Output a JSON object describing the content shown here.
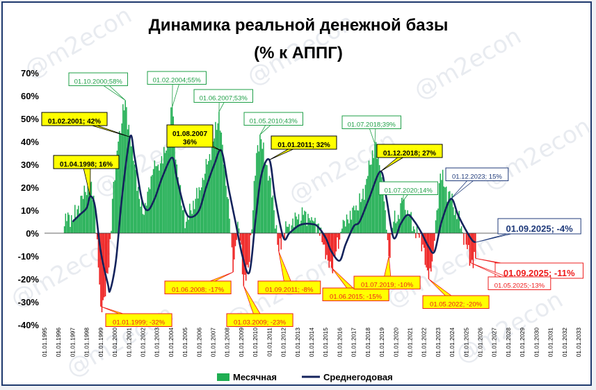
{
  "title_line1": "Динамика реальной денежной базы",
  "title_line2": "(% к АППГ)",
  "watermark": "@m2econ",
  "colors": {
    "positive": "#1fae52",
    "negative": "#ee1c1c",
    "line": "#14235c",
    "frame": "#1f3a6e",
    "callout_yellow": "#ffff00",
    "green_label": "#1e9f46",
    "blue_label": "#1f3a7a"
  },
  "chart_data": {
    "type": "bar",
    "ylim": [
      -40,
      70
    ],
    "y_ticks": [
      "70%",
      "60%",
      "50%",
      "40%",
      "30%",
      "20%",
      "10%",
      "0%",
      "-10%",
      "-20%",
      "-30%",
      "-40%"
    ],
    "y_tick_values": [
      70,
      60,
      50,
      40,
      30,
      20,
      10,
      0,
      -10,
      -20,
      -30,
      -40
    ],
    "x_ticks": [
      "01.01.1995",
      "01.01.1996",
      "01.01.1997",
      "01.01.1998",
      "01.01.1999",
      "01.01.2000",
      "01.01.2001",
      "01.01.2002",
      "01.01.2003",
      "01.01.2004",
      "01.01.2005",
      "01.01.2006",
      "01.01.2007",
      "01.01.2008",
      "01.01.2009",
      "01.01.2010",
      "01.01.2011",
      "01.01.2012",
      "01.01.2013",
      "01.01.2014",
      "01.01.2015",
      "01.01.2016",
      "01.01.2017",
      "01.01.2018",
      "01.01.2019",
      "01.01.2020",
      "01.01.2021",
      "01.01.2022",
      "01.01.2023",
      "01.01.2024",
      "01.01.2025",
      "01.01.2026",
      "01.01.2027",
      "01.01.2028",
      "01.01.2029",
      "01.01.2030",
      "01.01.2031",
      "01.01.2032",
      "01.01.2033"
    ],
    "series": [
      {
        "name": "Месячная",
        "kind": "bar",
        "anchors": [
          [
            "1996-06-01",
            3
          ],
          [
            "1996-09-01",
            9
          ],
          [
            "1997-01-01",
            5
          ],
          [
            "1997-06-01",
            12
          ],
          [
            "1997-12-01",
            18
          ],
          [
            "1998-04-01",
            22
          ],
          [
            "1998-08-01",
            12
          ],
          [
            "1998-11-01",
            -15
          ],
          [
            "1999-01-01",
            -32
          ],
          [
            "1999-04-01",
            -28
          ],
          [
            "1999-08-01",
            -15
          ],
          [
            "1999-11-01",
            15
          ],
          [
            "2000-04-01",
            40
          ],
          [
            "2000-10-01",
            58
          ],
          [
            "2001-02-01",
            42
          ],
          [
            "2001-06-01",
            30
          ],
          [
            "2001-10-01",
            15
          ],
          [
            "2002-02-01",
            8
          ],
          [
            "2002-06-01",
            20
          ],
          [
            "2002-10-01",
            28
          ],
          [
            "2003-02-01",
            30
          ],
          [
            "2003-08-01",
            35
          ],
          [
            "2004-02-01",
            55
          ],
          [
            "2004-06-01",
            30
          ],
          [
            "2004-10-01",
            12
          ],
          [
            "2005-02-01",
            5
          ],
          [
            "2005-06-01",
            10
          ],
          [
            "2005-10-01",
            15
          ],
          [
            "2006-03-01",
            20
          ],
          [
            "2006-08-01",
            30
          ],
          [
            "2007-01-01",
            40
          ],
          [
            "2007-06-01",
            53
          ],
          [
            "2007-10-01",
            30
          ],
          [
            "2008-02-01",
            15
          ],
          [
            "2008-06-01",
            -17
          ],
          [
            "2008-10-01",
            5
          ],
          [
            "2009-01-01",
            -5
          ],
          [
            "2009-03-01",
            -23
          ],
          [
            "2009-07-01",
            -15
          ],
          [
            "2009-11-01",
            10
          ],
          [
            "2010-02-01",
            35
          ],
          [
            "2010-05-01",
            43
          ],
          [
            "2010-10-01",
            30
          ],
          [
            "2011-01-01",
            25
          ],
          [
            "2011-05-01",
            10
          ],
          [
            "2011-09-01",
            -8
          ],
          [
            "2012-01-01",
            0
          ],
          [
            "2012-06-01",
            4
          ],
          [
            "2013-01-01",
            6
          ],
          [
            "2013-06-01",
            8
          ],
          [
            "2014-01-01",
            7
          ],
          [
            "2014-06-01",
            4
          ],
          [
            "2014-11-01",
            -5
          ],
          [
            "2015-03-01",
            -12
          ],
          [
            "2015-06-01",
            -15
          ],
          [
            "2015-10-01",
            -8
          ],
          [
            "2016-03-01",
            2
          ],
          [
            "2016-08-01",
            6
          ],
          [
            "2017-02-01",
            10
          ],
          [
            "2017-08-01",
            15
          ],
          [
            "2018-01-01",
            25
          ],
          [
            "2018-07-01",
            39
          ],
          [
            "2018-12-01",
            27
          ],
          [
            "2019-04-01",
            10
          ],
          [
            "2019-07-01",
            -10
          ],
          [
            "2019-11-01",
            5
          ],
          [
            "2020-03-01",
            8
          ],
          [
            "2020-07-01",
            14
          ],
          [
            "2020-11-01",
            10
          ],
          [
            "2021-04-01",
            3
          ],
          [
            "2021-09-01",
            -2
          ],
          [
            "2021-12-01",
            -5
          ],
          [
            "2022-03-01",
            -15
          ],
          [
            "2022-05-01",
            -20
          ],
          [
            "2022-09-01",
            -8
          ],
          [
            "2022-12-01",
            10
          ],
          [
            "2023-03-01",
            26
          ],
          [
            "2023-07-01",
            20
          ],
          [
            "2023-12-01",
            15
          ],
          [
            "2024-04-01",
            10
          ],
          [
            "2024-09-01",
            3
          ],
          [
            "2025-01-01",
            -5
          ],
          [
            "2025-05-01",
            -13
          ],
          [
            "2025-09-01",
            -11
          ]
        ]
      },
      {
        "name": "Среднегодовая",
        "kind": "line",
        "anchors": [
          [
            "1997-01-01",
            5
          ],
          [
            "1997-07-01",
            8
          ],
          [
            "1998-01-01",
            11
          ],
          [
            "1998-04-01",
            16
          ],
          [
            "1998-08-01",
            12
          ],
          [
            "1999-01-01",
            -8
          ],
          [
            "1999-07-01",
            -22
          ],
          [
            "1999-09-01",
            -25
          ],
          [
            "2000-02-01",
            -12
          ],
          [
            "2000-07-01",
            15
          ],
          [
            "2001-02-01",
            42
          ],
          [
            "2001-06-01",
            33
          ],
          [
            "2001-12-01",
            15
          ],
          [
            "2002-05-01",
            10
          ],
          [
            "2002-11-01",
            15
          ],
          [
            "2003-06-01",
            25
          ],
          [
            "2004-02-01",
            33
          ],
          [
            "2004-06-01",
            24
          ],
          [
            "2005-01-01",
            10
          ],
          [
            "2005-06-01",
            7
          ],
          [
            "2006-01-01",
            10
          ],
          [
            "2006-07-01",
            20
          ],
          [
            "2007-02-01",
            30
          ],
          [
            "2007-08-01",
            36
          ],
          [
            "2008-02-01",
            20
          ],
          [
            "2008-08-01",
            5
          ],
          [
            "2009-02-01",
            -10
          ],
          [
            "2009-08-01",
            -17
          ],
          [
            "2010-01-01",
            5
          ],
          [
            "2010-06-01",
            25
          ],
          [
            "2011-01-01",
            32
          ],
          [
            "2011-06-01",
            15
          ],
          [
            "2012-01-01",
            -2
          ],
          [
            "2012-06-01",
            0
          ],
          [
            "2013-01-01",
            3
          ],
          [
            "2013-06-01",
            4
          ],
          [
            "2014-01-01",
            4
          ],
          [
            "2014-06-01",
            3
          ],
          [
            "2015-01-01",
            -2
          ],
          [
            "2015-06-01",
            -8
          ],
          [
            "2016-01-01",
            -12
          ],
          [
            "2016-06-01",
            -5
          ],
          [
            "2017-01-01",
            3
          ],
          [
            "2017-06-01",
            5
          ],
          [
            "2018-02-01",
            15
          ],
          [
            "2018-12-01",
            27
          ],
          [
            "2019-05-01",
            15
          ],
          [
            "2019-11-01",
            -2
          ],
          [
            "2020-05-01",
            4
          ],
          [
            "2020-11-01",
            8
          ],
          [
            "2021-05-01",
            5
          ],
          [
            "2021-11-01",
            0
          ],
          [
            "2022-05-01",
            -6
          ],
          [
            "2022-10-01",
            -8
          ],
          [
            "2023-04-01",
            5
          ],
          [
            "2023-12-01",
            15
          ],
          [
            "2024-06-01",
            8
          ],
          [
            "2024-12-01",
            2
          ],
          [
            "2025-06-01",
            -3
          ],
          [
            "2025-09-01",
            -4
          ]
        ]
      }
    ],
    "legend": [
      "Месячная",
      "Среднегодовая"
    ],
    "legend_placement": "bottom"
  },
  "annotations": [
    {
      "text": "01.10.2000;58%",
      "style": "green",
      "at": [
        "2000-10-01",
        58
      ]
    },
    {
      "text": "01.02.2004;55%",
      "style": "green",
      "at": [
        "2004-02-01",
        55
      ]
    },
    {
      "text": "01.06.2007;53%",
      "style": "green",
      "at": [
        "2007-06-01",
        53
      ]
    },
    {
      "text": "01.05.2010;43%",
      "style": "green",
      "at": [
        "2010-05-01",
        43
      ]
    },
    {
      "text": "01.07.2018;39%",
      "style": "green",
      "at": [
        "2018-07-01",
        39
      ]
    },
    {
      "text": "01.07.2020;14%",
      "style": "green",
      "at": [
        "2020-07-01",
        14
      ]
    },
    {
      "text": "01.02.2001; 42%",
      "style": "yellow",
      "at": [
        "2001-02-01",
        42
      ]
    },
    {
      "text": "01.04.1998; 16%",
      "style": "yellow",
      "at": [
        "1998-04-01",
        16
      ]
    },
    {
      "text": "01.08.2007",
      "text2": "36%",
      "style": "yellow",
      "at": [
        "2007-08-01",
        36
      ]
    },
    {
      "text": "01.01.2011; 32%",
      "style": "yellow",
      "at": [
        "2011-01-01",
        32
      ]
    },
    {
      "text": "01.12.2018; 27%",
      "style": "yellow",
      "at": [
        "2018-12-01",
        27
      ]
    },
    {
      "text": "01.12.2023; 15%",
      "style": "blue",
      "at": [
        "2023-12-01",
        15
      ]
    },
    {
      "text": "01.09.2025; -4%",
      "style": "blue-big",
      "at": [
        "2025-09-01",
        -4
      ]
    },
    {
      "text": "01.01.1999; -32%",
      "style": "yellow-red",
      "at": [
        "1999-01-01",
        -32
      ]
    },
    {
      "text": "01.06.2008; -17%",
      "style": "yellow-red",
      "at": [
        "2008-06-01",
        -17
      ]
    },
    {
      "text": "01.03.2009; -23%",
      "style": "yellow-red",
      "at": [
        "2009-03-01",
        -23
      ]
    },
    {
      "text": "01.09.2011; -8%",
      "style": "yellow-red",
      "at": [
        "2011-09-01",
        -8
      ]
    },
    {
      "text": "01.06.2015; -15%",
      "style": "yellow-red",
      "at": [
        "2015-06-01",
        -15
      ]
    },
    {
      "text": "01.07.2019; -10%",
      "style": "yellow-red",
      "at": [
        "2019-07-01",
        -10
      ]
    },
    {
      "text": "01.05.2022; -20%",
      "style": "yellow-red",
      "at": [
        "2022-05-01",
        -20
      ]
    },
    {
      "text": "01.09.2025; -11%",
      "style": "red-big",
      "at": [
        "2025-09-01",
        -11
      ]
    },
    {
      "text": "01.05.2025;-13%",
      "style": "red",
      "at": [
        "2025-05-01",
        -13
      ]
    }
  ]
}
